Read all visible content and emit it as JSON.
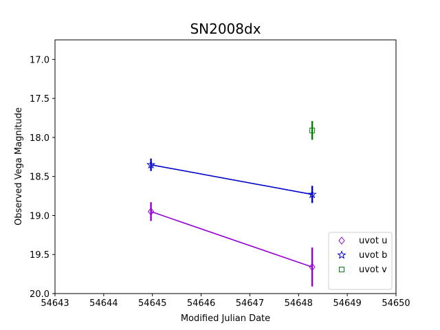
{
  "chart_data": {
    "type": "line",
    "title": "SN2008dx",
    "xlabel": "Modified Julian Date",
    "ylabel": "Observed Vega Magnitude",
    "xlim": [
      54643,
      54650
    ],
    "ylim": [
      20.0,
      16.75
    ],
    "y_inverted": true,
    "grid": false,
    "legend_position": "bottom-right",
    "x_ticks": [
      "54643",
      "54644",
      "54645",
      "54646",
      "54647",
      "54648",
      "54649",
      "54650"
    ],
    "y_ticks": [
      "17.0",
      "17.5",
      "18.0",
      "18.5",
      "19.0",
      "19.5",
      "20.0"
    ],
    "series": [
      {
        "name": "uvot u",
        "color": "#9400d3",
        "marker": "diamond",
        "connected": true,
        "points": [
          {
            "x": 54644.97,
            "y": 18.95,
            "err": 0.12
          },
          {
            "x": 54648.28,
            "y": 19.66,
            "err": 0.25
          }
        ]
      },
      {
        "name": "uvot b",
        "color": "#0000cd",
        "marker": "star",
        "connected": true,
        "points": [
          {
            "x": 54644.97,
            "y": 18.35,
            "err": 0.08
          },
          {
            "x": 54648.28,
            "y": 18.73,
            "err": 0.11
          }
        ]
      },
      {
        "name": "uvot v",
        "color": "#008000",
        "marker": "square",
        "connected": false,
        "points": [
          {
            "x": 54648.28,
            "y": 17.91,
            "err": 0.12
          }
        ]
      }
    ]
  }
}
